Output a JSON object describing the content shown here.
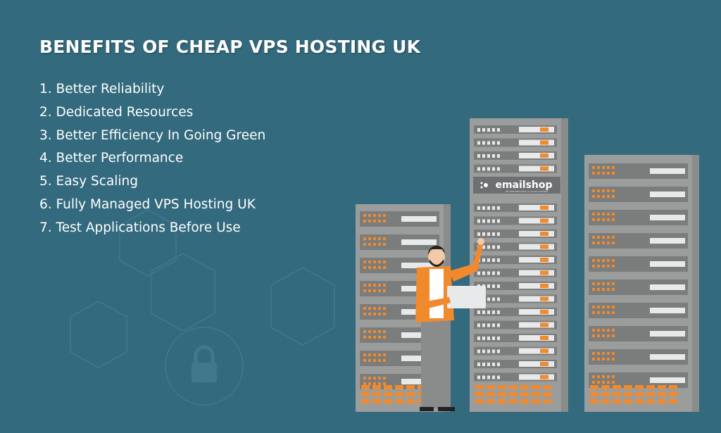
{
  "title": "BENEFITS OF CHEAP VPS HOSTING UK",
  "benefits": [
    "1. Better Reliability",
    "2. Dedicated Resources",
    "3. Better Efficiency In Going Green",
    "4. Better Performance",
    "5. Easy Scaling",
    "6. Fully Managed VPS Hosting UK",
    "7. Test Applications Before Use"
  ],
  "logo": {
    "text": "emailshop",
    "tagline": "SECURE WEB, EMAIL & CLOUD HOSTING"
  },
  "colors": {
    "background": "#336a7d",
    "accent": "#f08a2c",
    "rack": "#9b9c9c",
    "panel": "#7b7c7c",
    "text": "#ffffff"
  }
}
